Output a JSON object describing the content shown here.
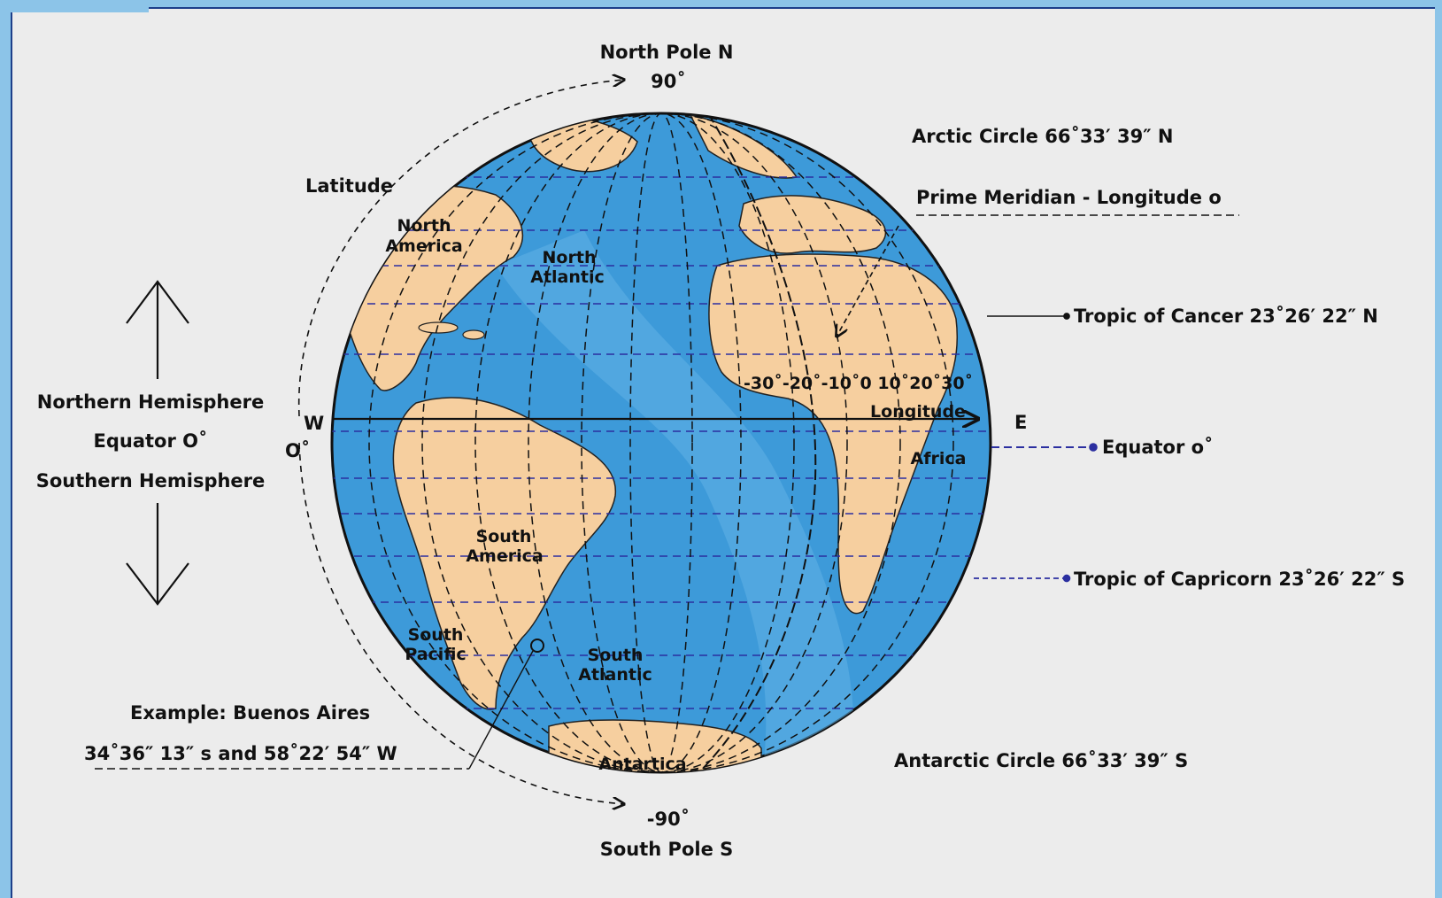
{
  "colors": {
    "ocean": "#3d9ad9",
    "ocean_light": "#63b3e6",
    "land": "#f6cf9f",
    "grid_dashed": "#2b2fa0",
    "background": "#ececec",
    "border": "#1d3f8a"
  },
  "poles": {
    "north_label": "North Pole N",
    "north_degree": "90˚",
    "south_degree": "-90˚",
    "south_label": "South Pole S"
  },
  "left": {
    "latitude_label": "Latitude",
    "northern": "Northern Hemisphere",
    "equator": "Equator O˚",
    "southern": "Southern Hemisphere",
    "west": "W",
    "zero": "O˚"
  },
  "continents": {
    "north_america_1": "North",
    "north_america_2": "America",
    "north_atlantic_1": "North",
    "north_atlantic_2": "Atlantic",
    "south_america_1": "South",
    "south_america_2": "America",
    "south_pacific_1": "South",
    "south_pacific_2": "Pacific",
    "south_atlantic_1": "South",
    "south_atlantic_2": "Atlantic",
    "africa": "Africa",
    "antarctica": "Antartica"
  },
  "longitude": {
    "scale": "-30˚-20˚-10˚0 10˚20˚30˚",
    "label": "Longitude",
    "east": "E"
  },
  "right": {
    "arctic": "Arctic Circle 66˚33′ 39″ N",
    "prime_meridian": "Prime Meridian - Longitude o",
    "tropic_cancer": "Tropic of Cancer 23˚26′ 22″ N",
    "equator": "Equator o˚",
    "tropic_capricorn": "Tropic of Capricorn 23˚26′ 22″ S",
    "antarctic": "Antarctic Circle 66˚33′ 39″ S"
  },
  "example": {
    "title": "Example: Buenos Aires",
    "coords": "34˚36″ 13″ s and 58˚22′ 54″ W"
  }
}
